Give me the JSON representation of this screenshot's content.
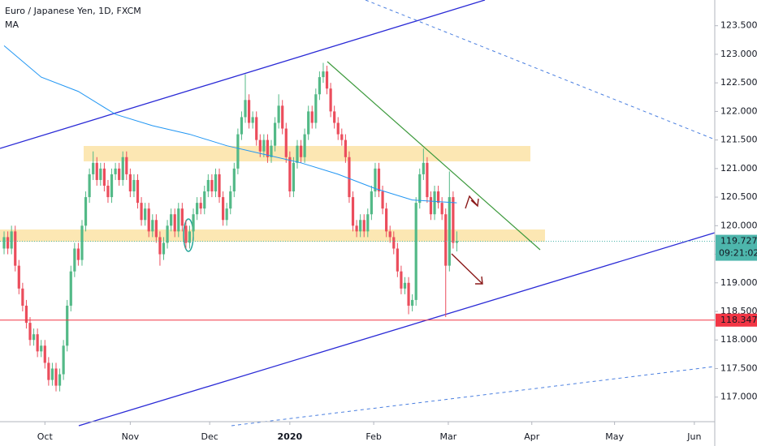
{
  "chart_data": {
    "type": "candlestick",
    "title": "Euro / Japanese Yen, 1D, FXCM",
    "open": [
      119.6,
      119.8,
      119.6,
      119.9,
      119.3,
      118.9,
      118.6,
      118.3,
      118.0,
      118.1,
      117.8,
      117.9,
      117.6,
      117.3,
      117.5,
      117.2,
      117.4,
      117.9,
      118.6,
      119.2,
      119.6,
      119.4,
      120.0,
      120.5,
      120.9,
      121.1,
      120.8,
      121.0,
      120.7,
      120.5,
      120.9,
      121.0,
      120.8,
      121.2,
      120.9,
      120.6,
      120.8,
      120.4,
      120.1,
      120.3,
      119.9,
      120.1,
      119.8,
      119.5,
      119.7,
      120.0,
      120.2,
      119.9,
      120.3,
      120.0,
      119.7,
      119.9,
      120.2,
      120.4,
      120.3,
      120.6,
      120.8,
      120.6,
      120.9,
      120.5,
      120.1,
      120.3,
      120.6,
      121.0,
      121.6,
      121.9,
      122.2,
      121.8,
      121.9,
      121.5,
      121.3,
      121.5,
      121.2,
      121.4,
      121.8,
      122.1,
      121.7,
      121.2,
      120.6,
      121.1,
      121.4,
      121.2,
      121.6,
      122.0,
      121.8,
      122.3,
      122.6,
      122.7,
      122.4,
      122.0,
      121.8,
      121.6,
      121.5,
      121.2,
      120.5,
      120.0,
      119.9,
      120.1,
      119.9,
      120.2,
      120.6,
      121.0,
      120.6,
      120.3,
      119.9,
      119.8,
      119.6,
      119.2,
      118.9,
      119.0,
      118.6,
      118.7,
      120.4,
      120.9,
      121.1,
      120.5,
      120.2,
      120.6,
      120.4,
      120.2,
      119.3,
      120.5,
      119.7
    ],
    "high": [
      119.9,
      119.9,
      120.0,
      120.0,
      119.4,
      119.0,
      118.7,
      118.4,
      118.2,
      118.2,
      118.0,
      118.0,
      117.7,
      117.6,
      117.6,
      117.5,
      118.0,
      118.7,
      119.3,
      119.7,
      119.7,
      120.1,
      120.6,
      121.0,
      121.3,
      121.2,
      121.1,
      121.1,
      120.8,
      121.0,
      121.1,
      121.1,
      121.3,
      121.3,
      121.0,
      120.9,
      120.9,
      120.5,
      120.4,
      120.4,
      120.2,
      120.2,
      119.9,
      119.8,
      120.1,
      120.3,
      120.3,
      120.4,
      120.4,
      120.1,
      120.0,
      120.3,
      120.5,
      120.5,
      120.7,
      120.9,
      120.9,
      121.0,
      121.0,
      120.6,
      120.4,
      120.7,
      121.1,
      121.7,
      122.0,
      122.65,
      122.3,
      122.0,
      122.0,
      121.6,
      121.6,
      121.6,
      121.5,
      121.9,
      122.3,
      122.2,
      121.8,
      121.3,
      121.2,
      121.5,
      121.5,
      121.7,
      122.1,
      122.1,
      122.4,
      122.7,
      122.85,
      122.8,
      122.5,
      122.1,
      121.9,
      121.7,
      121.6,
      121.3,
      120.6,
      120.1,
      120.2,
      120.2,
      120.3,
      120.7,
      121.1,
      121.1,
      120.7,
      120.4,
      120.0,
      119.9,
      119.7,
      119.3,
      119.1,
      119.1,
      118.8,
      120.5,
      121.0,
      121.35,
      121.2,
      120.6,
      120.7,
      120.7,
      120.5,
      120.3,
      120.95,
      120.6,
      119.9
    ],
    "low": [
      119.5,
      119.5,
      119.5,
      119.2,
      118.8,
      118.5,
      118.2,
      117.9,
      117.9,
      117.7,
      117.7,
      117.5,
      117.2,
      117.2,
      117.1,
      117.1,
      117.3,
      117.8,
      118.5,
      119.1,
      119.3,
      119.3,
      119.9,
      120.4,
      120.8,
      120.7,
      120.7,
      120.6,
      120.4,
      120.4,
      120.8,
      120.7,
      120.7,
      120.8,
      120.5,
      120.5,
      120.3,
      120.0,
      120.0,
      119.8,
      119.8,
      119.7,
      119.3,
      119.4,
      119.6,
      119.9,
      119.8,
      119.8,
      119.9,
      119.6,
      119.6,
      119.8,
      120.1,
      120.2,
      120.2,
      120.5,
      120.5,
      120.5,
      120.4,
      120.0,
      120.0,
      120.2,
      120.5,
      120.9,
      121.5,
      121.8,
      121.7,
      121.7,
      121.4,
      121.2,
      121.2,
      121.1,
      121.1,
      121.3,
      121.7,
      121.6,
      121.1,
      120.5,
      120.5,
      121.0,
      121.1,
      121.1,
      121.5,
      121.7,
      121.7,
      122.2,
      122.5,
      122.3,
      121.9,
      121.7,
      121.5,
      121.4,
      121.1,
      120.4,
      119.9,
      119.8,
      119.8,
      119.8,
      119.8,
      120.1,
      120.5,
      120.5,
      120.2,
      119.8,
      119.7,
      119.5,
      119.1,
      118.8,
      118.8,
      118.45,
      118.5,
      118.6,
      120.3,
      120.8,
      120.4,
      120.1,
      120.1,
      120.3,
      120.1,
      118.4,
      119.2,
      119.6,
      119.55
    ],
    "close": [
      119.8,
      119.6,
      119.9,
      119.3,
      118.9,
      118.6,
      118.3,
      118.0,
      118.1,
      117.8,
      117.9,
      117.6,
      117.3,
      117.5,
      117.2,
      117.4,
      117.9,
      118.6,
      119.2,
      119.6,
      119.4,
      120.0,
      120.5,
      120.9,
      121.1,
      120.8,
      121.0,
      120.7,
      120.5,
      120.9,
      121.0,
      120.8,
      121.2,
      120.9,
      120.6,
      120.8,
      120.4,
      120.1,
      120.3,
      119.9,
      120.1,
      119.8,
      119.5,
      119.7,
      120.0,
      120.2,
      119.9,
      120.3,
      120.0,
      119.7,
      119.9,
      120.2,
      120.4,
      120.3,
      120.6,
      120.8,
      120.6,
      120.9,
      120.5,
      120.1,
      120.3,
      120.6,
      121.0,
      121.6,
      121.9,
      122.2,
      121.8,
      121.9,
      121.5,
      121.3,
      121.5,
      121.2,
      121.4,
      121.8,
      122.1,
      121.7,
      121.2,
      120.6,
      121.1,
      121.4,
      121.2,
      121.6,
      122.0,
      121.8,
      122.3,
      122.6,
      122.7,
      122.4,
      122.0,
      121.8,
      121.6,
      121.5,
      121.2,
      120.5,
      120.0,
      119.9,
      120.1,
      119.9,
      120.2,
      120.6,
      121.0,
      120.6,
      120.3,
      119.9,
      119.8,
      119.6,
      119.2,
      118.9,
      119.0,
      118.6,
      118.7,
      120.4,
      120.9,
      121.1,
      120.5,
      120.2,
      120.6,
      120.4,
      120.2,
      119.3,
      120.5,
      119.7,
      119.73
    ],
    "up_color": "#53b987",
    "down_color": "#eb4d5c",
    "series": [
      {
        "name": "MA",
        "color": "#2196f3",
        "x": [
          0,
          10,
          20,
          30,
          40,
          50,
          60,
          70,
          80,
          90,
          100,
          110,
          122
        ],
        "values": [
          123.15,
          122.6,
          122.35,
          121.95,
          121.75,
          121.6,
          121.4,
          121.25,
          121.1,
          120.9,
          120.65,
          120.45,
          120.4
        ]
      }
    ],
    "xlim": [
      -1.1,
      191.5
    ],
    "xticks": [
      {
        "value": 11,
        "label": "Oct"
      },
      {
        "value": 34,
        "label": "Nov"
      },
      {
        "value": 55.4,
        "label": "Dec"
      },
      {
        "value": 77,
        "label": "2020"
      },
      {
        "value": 99.6,
        "label": "Feb"
      },
      {
        "value": 119.7,
        "label": "Mar"
      },
      {
        "value": 142.2,
        "label": "Apr"
      },
      {
        "value": 164.5,
        "label": "May"
      },
      {
        "value": 186,
        "label": "Jun"
      }
    ],
    "ylim": [
      116.57,
      123.95
    ],
    "yticks": [
      {
        "value": 117,
        "label": "117.000"
      },
      {
        "value": 117.5,
        "label": "117.500"
      },
      {
        "value": 118,
        "label": "118.000"
      },
      {
        "value": 118.5,
        "label": "118.500"
      },
      {
        "value": 119,
        "label": "119.000"
      },
      {
        "value": 119.5,
        "label": "119.500"
      },
      {
        "value": 120,
        "label": "120.000"
      },
      {
        "value": 120.5,
        "label": "120.500"
      },
      {
        "value": 121,
        "label": "121.000"
      },
      {
        "value": 121.5,
        "label": "121.500"
      },
      {
        "value": 122,
        "label": "122.000"
      },
      {
        "value": 122.5,
        "label": "122.500"
      },
      {
        "value": 123,
        "label": "123.000"
      },
      {
        "value": 123.5,
        "label": "123.500"
      }
    ],
    "last_price": 119.727,
    "last_price_color": "#4db6ac",
    "countdown": "09:21:02",
    "level": 118.347,
    "level_color": "#f23645"
  }
}
